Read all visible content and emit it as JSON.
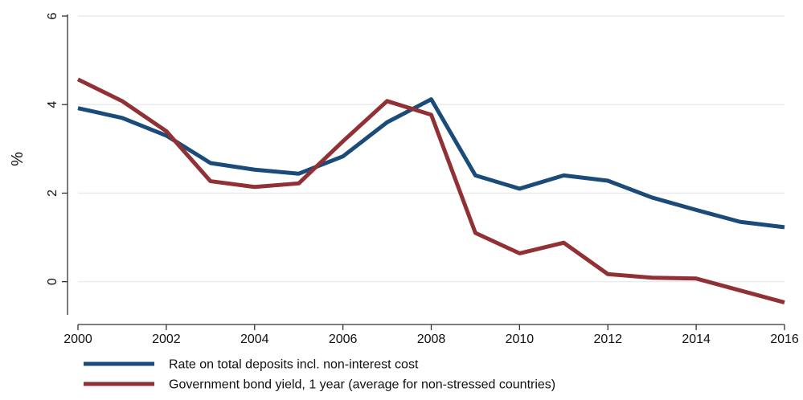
{
  "chart_data": {
    "type": "line",
    "title": "",
    "xlabel": "",
    "ylabel": "%",
    "xlim": [
      2000,
      2016
    ],
    "ylim": [
      -0.75,
      6
    ],
    "x_ticks": [
      2000,
      2002,
      2004,
      2006,
      2008,
      2010,
      2012,
      2014,
      2016
    ],
    "y_ticks": [
      0,
      2,
      4,
      6
    ],
    "grid": true,
    "legend_position": "bottom",
    "x": [
      2000,
      2001,
      2002,
      2003,
      2004,
      2005,
      2006,
      2007,
      2008,
      2009,
      2010,
      2011,
      2012,
      2013,
      2014,
      2015,
      2016
    ],
    "series": [
      {
        "name": "Rate on total deposits incl. non-interest cost",
        "color": "#1b4b79",
        "values": [
          3.92,
          3.7,
          3.3,
          2.68,
          2.53,
          2.44,
          2.83,
          3.6,
          4.12,
          2.4,
          2.1,
          2.4,
          2.28,
          1.9,
          1.62,
          1.35,
          1.23
        ]
      },
      {
        "name": "Government bond yield, 1 year (average for non-stressed countries)",
        "color": "#913135",
        "values": [
          4.57,
          4.08,
          3.4,
          2.27,
          2.14,
          2.22,
          3.17,
          4.08,
          3.77,
          1.1,
          0.64,
          0.88,
          0.17,
          0.09,
          0.07,
          -0.2,
          -0.47
        ]
      }
    ]
  }
}
